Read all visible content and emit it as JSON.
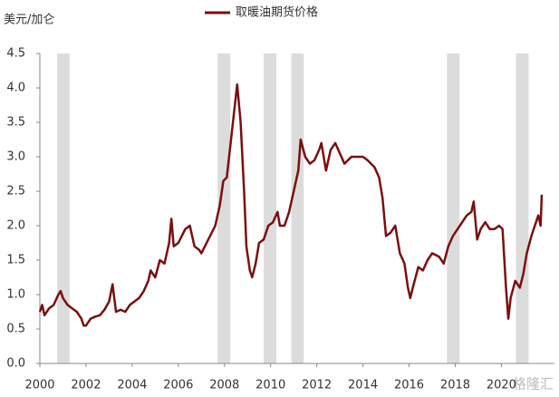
{
  "chart_data": {
    "type": "line",
    "y_unit_label": "美元/加仑",
    "watermark": "格隆汇",
    "xlim": [
      2000,
      2022.3
    ],
    "xticks": [
      2000,
      2002,
      2004,
      2006,
      2008,
      2010,
      2012,
      2014,
      2016,
      2018,
      2020
    ],
    "ylim": [
      0,
      4.5
    ],
    "yticks": [
      {
        "value": 0,
        "label": "0.0"
      },
      0.5,
      {
        "value": 1,
        "label": "1.0"
      },
      1.5,
      {
        "value": 2,
        "label": "2.0"
      },
      2.5,
      {
        "value": 3,
        "label": "3.0"
      },
      3.5,
      {
        "value": 4,
        "label": "4.0"
      },
      4.5
    ],
    "shaded_ranges": [
      [
        2000.75,
        2001.29
      ],
      [
        2007.7,
        2008.25
      ],
      [
        2009.7,
        2010.25
      ],
      [
        2010.9,
        2011.43
      ],
      [
        2017.64,
        2018.19
      ],
      [
        2020.63,
        2021.18
      ]
    ],
    "shade_color": "#dcdcdc",
    "series": [
      {
        "name": "取暖油期货价格",
        "color": "#7b0f0f",
        "x": [
          2000.0,
          2000.1,
          2000.2,
          2000.4,
          2000.6,
          2000.8,
          2000.9,
          2001.0,
          2001.2,
          2001.4,
          2001.6,
          2001.8,
          2001.9,
          2002.0,
          2002.2,
          2002.4,
          2002.6,
          2002.8,
          2003.0,
          2003.15,
          2003.3,
          2003.5,
          2003.7,
          2003.9,
          2004.1,
          2004.3,
          2004.5,
          2004.7,
          2004.8,
          2005.0,
          2005.2,
          2005.4,
          2005.6,
          2005.7,
          2005.8,
          2006.0,
          2006.3,
          2006.5,
          2006.7,
          2006.9,
          2007.0,
          2007.3,
          2007.6,
          2007.8,
          2007.95,
          2008.1,
          2008.3,
          2008.5,
          2008.55,
          2008.7,
          2008.85,
          2008.95,
          2009.1,
          2009.2,
          2009.35,
          2009.5,
          2009.7,
          2009.9,
          2010.1,
          2010.3,
          2010.4,
          2010.6,
          2010.8,
          2011.0,
          2011.2,
          2011.3,
          2011.5,
          2011.7,
          2011.9,
          2012.1,
          2012.2,
          2012.4,
          2012.6,
          2012.8,
          2013.0,
          2013.2,
          2013.5,
          2013.8,
          2014.0,
          2014.2,
          2014.5,
          2014.7,
          2014.85,
          2015.0,
          2015.2,
          2015.4,
          2015.6,
          2015.8,
          2015.95,
          2016.05,
          2016.2,
          2016.4,
          2016.6,
          2016.8,
          2017.0,
          2017.3,
          2017.5,
          2017.7,
          2017.9,
          2018.1,
          2018.3,
          2018.5,
          2018.7,
          2018.8,
          2018.95,
          2019.1,
          2019.3,
          2019.5,
          2019.7,
          2019.9,
          2020.05,
          2020.2,
          2020.3,
          2020.4,
          2020.6,
          2020.8,
          2020.95,
          2021.1,
          2021.3,
          2021.5,
          2021.6,
          2021.7,
          2021.75
        ],
        "values": [
          0.75,
          0.85,
          0.7,
          0.8,
          0.85,
          1.0,
          1.05,
          0.95,
          0.85,
          0.8,
          0.75,
          0.65,
          0.55,
          0.55,
          0.65,
          0.68,
          0.7,
          0.78,
          0.9,
          1.15,
          0.75,
          0.78,
          0.75,
          0.85,
          0.9,
          0.95,
          1.05,
          1.2,
          1.35,
          1.25,
          1.5,
          1.45,
          1.75,
          2.1,
          1.7,
          1.75,
          1.95,
          2.0,
          1.7,
          1.65,
          1.6,
          1.8,
          2.0,
          2.3,
          2.65,
          2.7,
          3.3,
          3.9,
          4.05,
          3.5,
          2.5,
          1.7,
          1.35,
          1.25,
          1.45,
          1.75,
          1.8,
          2.0,
          2.05,
          2.2,
          2.0,
          2.0,
          2.2,
          2.5,
          2.8,
          3.25,
          3.0,
          2.9,
          2.95,
          3.1,
          3.2,
          2.8,
          3.1,
          3.2,
          3.05,
          2.9,
          3.0,
          3.0,
          3.0,
          2.95,
          2.85,
          2.7,
          2.4,
          1.85,
          1.9,
          2.0,
          1.6,
          1.45,
          1.1,
          0.95,
          1.15,
          1.4,
          1.35,
          1.5,
          1.6,
          1.55,
          1.45,
          1.7,
          1.85,
          1.95,
          2.05,
          2.15,
          2.2,
          2.35,
          1.8,
          1.95,
          2.05,
          1.95,
          1.95,
          2.0,
          1.95,
          1.1,
          0.65,
          0.95,
          1.2,
          1.1,
          1.3,
          1.6,
          1.85,
          2.05,
          2.15,
          2.0,
          2.45
        ]
      }
    ]
  }
}
